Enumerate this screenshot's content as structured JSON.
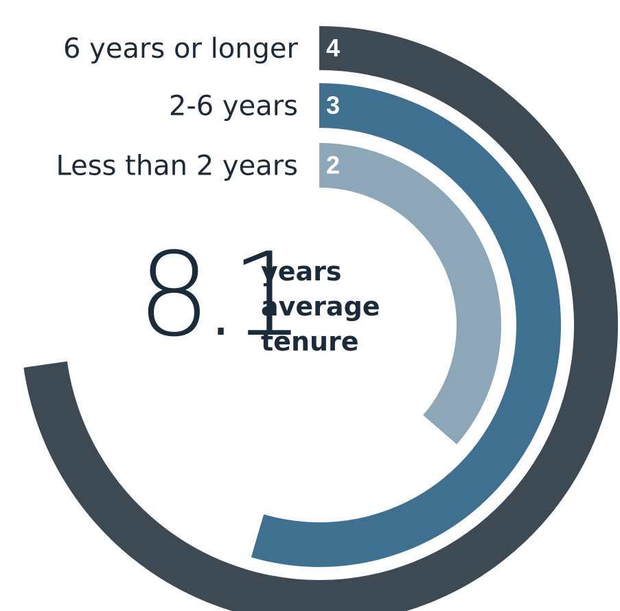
{
  "chart_data": {
    "type": "radial-bar",
    "categories": [
      "6 years or longer",
      "2-6 years",
      "Less than 2 years"
    ],
    "values": [
      4,
      3,
      2
    ],
    "value_labels": [
      "4",
      "3",
      "2"
    ],
    "max_value": 5.5,
    "colors": [
      "#3d4a54",
      "#40708f",
      "#8da7b9"
    ]
  },
  "summary": {
    "number": "8.1",
    "caption_lines": [
      "years",
      "average",
      "tenure"
    ]
  }
}
